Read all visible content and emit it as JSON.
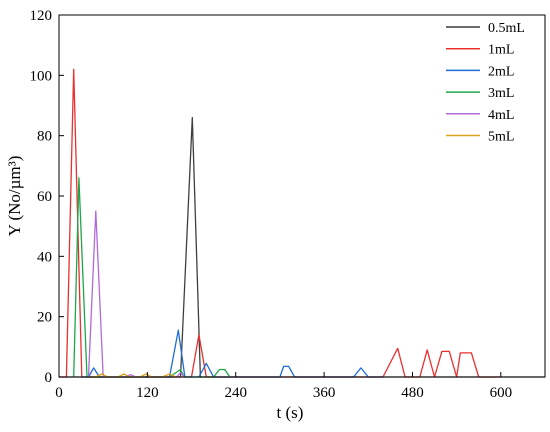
{
  "chart_data": {
    "type": "line",
    "xlabel": "t (s)",
    "ylabel": "Y (No/µm³)",
    "xlim": [
      0,
      660
    ],
    "ylim": [
      0,
      120
    ],
    "x_ticks": [
      0,
      120,
      240,
      360,
      480,
      600
    ],
    "y_ticks": [
      0,
      20,
      40,
      60,
      80,
      100,
      120
    ],
    "x_tick_labels": [
      "0",
      "120",
      "240",
      "360",
      "480",
      "600"
    ],
    "y_tick_labels": [
      "0",
      "20",
      "40",
      "60",
      "80",
      "100",
      "120"
    ],
    "grid": false,
    "legend_position": "top-right",
    "series": [
      {
        "name": "0.5mL",
        "color": "#3f3f3f",
        "points": [
          [
            0,
            0
          ],
          [
            150,
            0
          ],
          [
            165,
            0
          ],
          [
            181,
            86
          ],
          [
            192,
            0
          ],
          [
            210,
            0
          ],
          [
            660,
            0
          ]
        ]
      },
      {
        "name": "1mL",
        "color": "#e8302f",
        "points": [
          [
            0,
            0
          ],
          [
            10,
            0
          ],
          [
            20,
            102
          ],
          [
            31,
            0
          ],
          [
            180,
            0
          ],
          [
            190,
            14
          ],
          [
            200,
            0
          ],
          [
            440,
            0
          ],
          [
            460,
            9.5
          ],
          [
            470,
            0
          ],
          [
            490,
            0
          ],
          [
            500,
            9
          ],
          [
            510,
            0
          ],
          [
            520,
            8.5
          ],
          [
            530,
            8.5
          ],
          [
            540,
            0
          ],
          [
            545,
            8
          ],
          [
            560,
            8
          ],
          [
            570,
            0
          ],
          [
            600,
            0
          ]
        ]
      },
      {
        "name": "2mL",
        "color": "#1e6ed6",
        "points": [
          [
            30,
            0
          ],
          [
            40,
            0
          ],
          [
            47,
            3
          ],
          [
            55,
            0
          ],
          [
            150,
            0
          ],
          [
            162,
            15.5
          ],
          [
            171,
            0
          ],
          [
            190,
            0
          ],
          [
            200,
            4.5
          ],
          [
            210,
            0
          ],
          [
            300,
            0
          ],
          [
            305,
            3.5
          ],
          [
            312,
            3.5
          ],
          [
            320,
            0
          ],
          [
            400,
            0
          ],
          [
            410,
            3
          ],
          [
            420,
            0
          ],
          [
            440,
            0
          ]
        ]
      },
      {
        "name": "3mL",
        "color": "#1da64a",
        "points": [
          [
            20,
            0
          ],
          [
            27,
            66
          ],
          [
            38,
            0
          ],
          [
            150,
            0
          ],
          [
            165,
            2.5
          ],
          [
            170,
            0
          ],
          [
            210,
            0
          ],
          [
            218,
            2.5
          ],
          [
            225,
            2.5
          ],
          [
            232,
            0
          ]
        ]
      },
      {
        "name": "4mL",
        "color": "#b26ad9",
        "points": [
          [
            40,
            0
          ],
          [
            50,
            55
          ],
          [
            60,
            0
          ],
          [
            90,
            0
          ],
          [
            97,
            0.8
          ],
          [
            104,
            0
          ],
          [
            160,
            0
          ],
          [
            165,
            1.5
          ],
          [
            170,
            0
          ]
        ]
      },
      {
        "name": "5mL",
        "color": "#e0a21b",
        "points": [
          [
            40,
            0
          ],
          [
            50,
            0
          ],
          [
            58,
            1
          ],
          [
            66,
            0
          ],
          [
            80,
            0
          ],
          [
            88,
            1
          ],
          [
            96,
            0
          ],
          [
            110,
            0
          ],
          [
            118,
            1
          ],
          [
            126,
            0
          ],
          [
            140,
            0
          ],
          [
            150,
            1
          ],
          [
            158,
            0
          ]
        ]
      }
    ]
  }
}
